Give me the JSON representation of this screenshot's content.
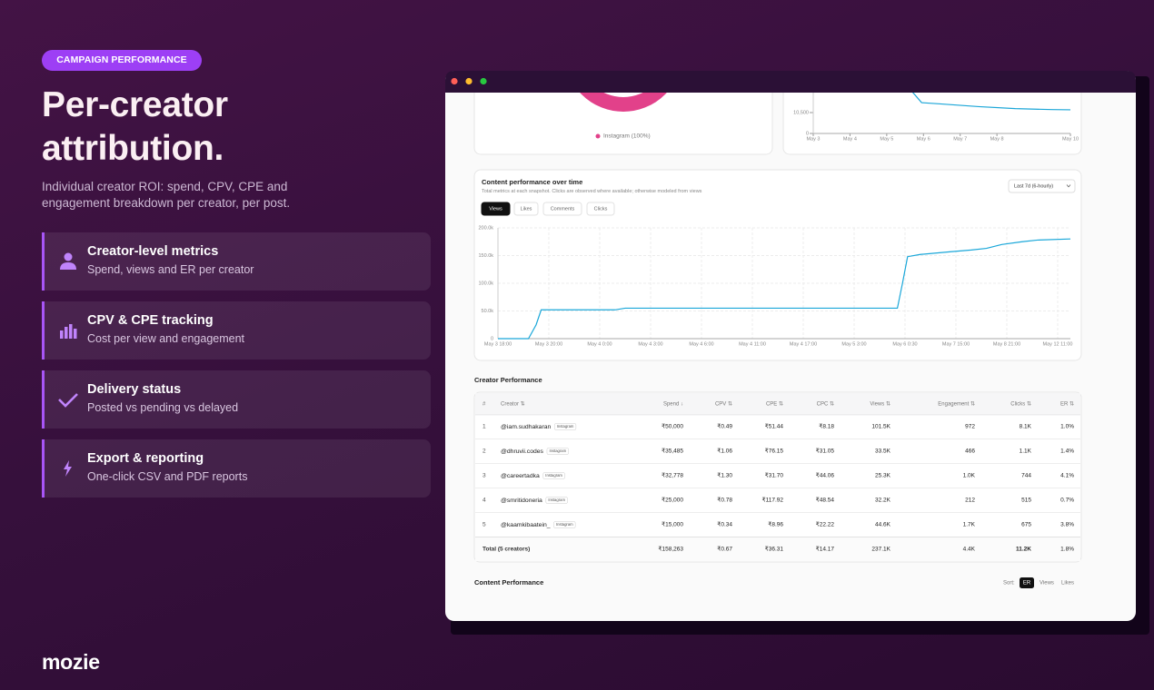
{
  "badge": "CAMPAIGN PERFORMANCE",
  "headline": [
    "Per-creator",
    "attribution."
  ],
  "subtitle": "Individual creator ROI: spend, CPV, CPE and engagement breakdown per creator, per post.",
  "features": [
    {
      "title": "Creator-level metrics",
      "desc": "Spend, views and ER per creator"
    },
    {
      "title": "CPV & CPE tracking",
      "desc": "Cost per view and engagement"
    },
    {
      "title": "Delivery status",
      "desc": "Posted vs pending vs delayed"
    },
    {
      "title": "Export & reporting",
      "desc": "One-click CSV and PDF reports"
    }
  ],
  "brand": "mozie",
  "chart_data": [
    {
      "type": "pie",
      "categories": [
        "Instagram"
      ],
      "values": [
        100
      ],
      "value_labels": [
        "Instagram (100%)"
      ],
      "colors": [
        "#e2418a"
      ]
    },
    {
      "type": "line",
      "x": [
        5.6,
        5.95,
        6.5,
        7.5,
        8.5,
        9.5,
        10
      ],
      "values": [
        23000,
        15500,
        14800,
        13500,
        12500,
        12000,
        11900
      ],
      "xlim": [
        3,
        10
      ],
      "ylim": [
        0,
        21000
      ],
      "xticks": [
        {
          "value": 3,
          "label": "May 3"
        },
        {
          "value": 4,
          "label": "May 4"
        },
        {
          "value": 5,
          "label": "May 5"
        },
        {
          "value": 6,
          "label": "May 6"
        },
        {
          "value": 7,
          "label": "May 7"
        },
        {
          "value": 8,
          "label": "May 8"
        },
        {
          "value": 10,
          "label": "May 10"
        }
      ],
      "yticks": [
        0,
        {
          "value": 10500,
          "label": "10,500"
        }
      ],
      "color": "#1ba6d8",
      "grid": false
    },
    {
      "type": "line",
      "title": "Content performance over time",
      "subtitle": "Total metrics at each snapshot. Clicks are observed where available; otherwise modeled from views",
      "range_select": "Last 7d (6-hourly)",
      "tabs": [
        "Views",
        "Likes",
        "Comments",
        "Clicks"
      ],
      "active_tab": 0,
      "x": [
        0,
        0.6,
        0.75,
        0.85,
        2.3,
        2.5,
        7.85,
        7.95,
        8.05,
        8.3,
        8.9,
        9.3,
        9.6,
        9.9,
        10.3,
        10.6,
        11.25
      ],
      "values": [
        0,
        0,
        25000,
        52000,
        52000,
        55000,
        55000,
        100000,
        148000,
        152000,
        157000,
        160000,
        163000,
        170000,
        175000,
        178000,
        180000
      ],
      "xlim": [
        0,
        11.25
      ],
      "ylim": [
        0,
        200000
      ],
      "xticks": [
        {
          "value": 0,
          "label": "May 3 18:00"
        },
        {
          "value": 1,
          "label": "May 3 20:00"
        },
        {
          "value": 2,
          "label": "May 4 0:00"
        },
        {
          "value": 3,
          "label": "May 4 3:00"
        },
        {
          "value": 4,
          "label": "May 4 6:00"
        },
        {
          "value": 5,
          "label": "May 4 11:00"
        },
        {
          "value": 6,
          "label": "May 4 17:00"
        },
        {
          "value": 7,
          "label": "May 5 3:00"
        },
        {
          "value": 8,
          "label": "May 6 0:30"
        },
        {
          "value": 9,
          "label": "May 7 15:00"
        },
        {
          "value": 10,
          "label": "May 8 21:00"
        },
        {
          "value": 11,
          "label": "May 12 11:00"
        }
      ],
      "yticks": [
        0,
        {
          "value": 50000,
          "label": "50.0k"
        },
        {
          "value": 100000,
          "label": "100.0k"
        },
        {
          "value": 150000,
          "label": "150.0k"
        },
        {
          "value": 200000,
          "label": "200.0k"
        }
      ],
      "color": "#1aa7d9",
      "grid": true
    }
  ],
  "table": {
    "title": "Creator Performance",
    "columns": [
      "#",
      "Creator ⇅",
      "Spend ↓",
      "CPV ⇅",
      "CPE ⇅",
      "CPC ⇅",
      "Views ⇅",
      "Engagement ⇅",
      "Clicks ⇅",
      "ER ⇅"
    ],
    "rows": [
      {
        "rank": "1",
        "creator": "@iam.sudhakaran",
        "platform": "Instagram",
        "cells": [
          "₹50,000",
          "₹0.49",
          "₹51.44",
          "₹8.18",
          "101.5K",
          "972",
          "8.1K",
          "1.0%"
        ]
      },
      {
        "rank": "2",
        "creator": "@dhruvii.codes",
        "platform": "Instagram",
        "cells": [
          "₹35,485",
          "₹1.06",
          "₹76.15",
          "₹31.05",
          "33.5K",
          "466",
          "1.1K",
          "1.4%"
        ]
      },
      {
        "rank": "3",
        "creator": "@careertadka",
        "platform": "Instagram",
        "cells": [
          "₹32,778",
          "₹1.30",
          "₹31.70",
          "₹44.06",
          "25.3K",
          "1.0K",
          "744",
          "4.1%"
        ]
      },
      {
        "rank": "4",
        "creator": "@smritidoneria",
        "platform": "Instagram",
        "cells": [
          "₹25,000",
          "₹0.78",
          "₹117.92",
          "₹48.54",
          "32.2K",
          "212",
          "515",
          "0.7%"
        ]
      },
      {
        "rank": "5",
        "creator": "@kaamkibaatein_",
        "platform": "Instagram",
        "cells": [
          "₹15,000",
          "₹0.34",
          "₹8.96",
          "₹22.22",
          "44.6K",
          "1.7K",
          "675",
          "3.8%"
        ]
      }
    ],
    "total": {
      "label": "Total (5 creators)",
      "cells": [
        "₹158,263",
        "₹0.67",
        "₹36.31",
        "₹14.17",
        "237.1K",
        "4.4K",
        "11.2K",
        "1.8%"
      ]
    }
  },
  "content_section": {
    "title": "Content Performance",
    "sort_label": "Sort:",
    "sort_options": [
      "ER",
      "Views",
      "Likes"
    ],
    "active_sort": 0
  }
}
